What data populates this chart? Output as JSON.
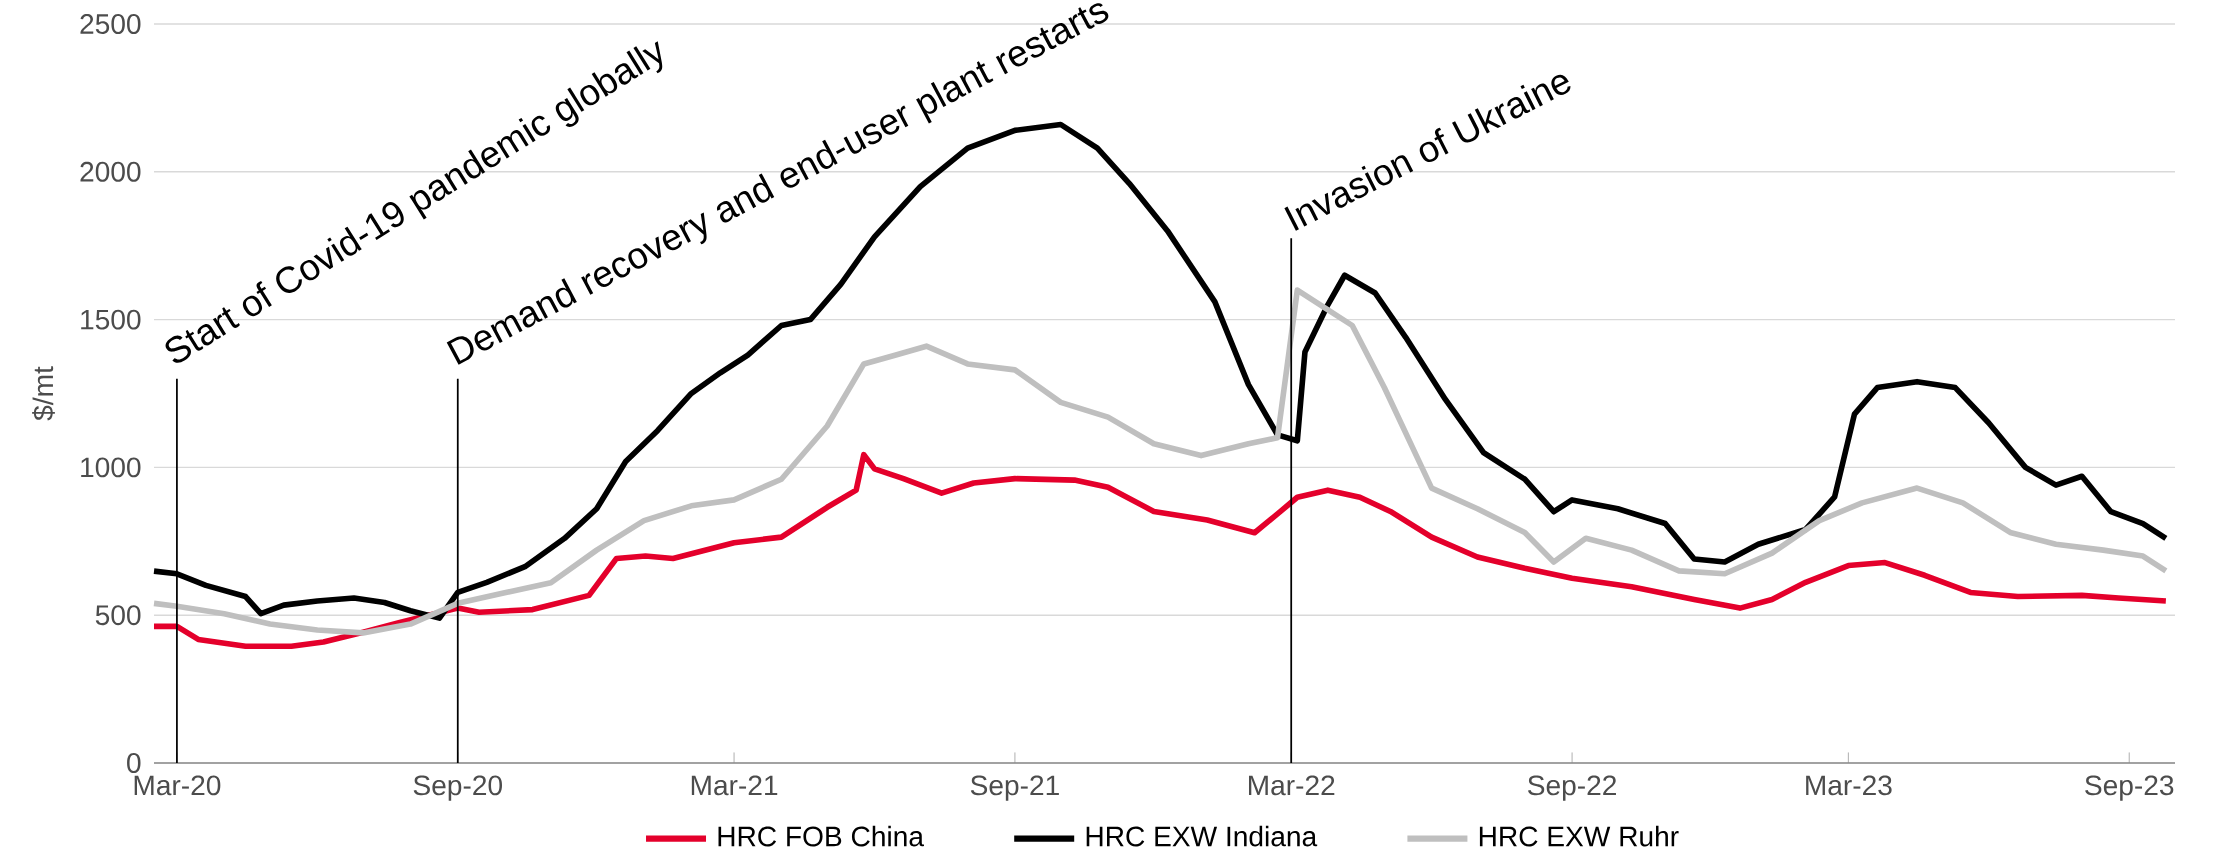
{
  "chart_data": {
    "type": "line",
    "ylabel": "$/mt",
    "ylim": [
      0,
      2500
    ],
    "yticks": [
      0,
      500,
      1000,
      1500,
      2000,
      2500
    ],
    "xlim": [
      "2020-02-15",
      "2023-10-01"
    ],
    "xticks": [
      {
        "value": "2020-03-01",
        "label": "Mar-20"
      },
      {
        "value": "2020-09-01",
        "label": "Sep-20"
      },
      {
        "value": "2021-03-01",
        "label": "Mar-21"
      },
      {
        "value": "2021-09-01",
        "label": "Sep-21"
      },
      {
        "value": "2022-03-01",
        "label": "Mar-22"
      },
      {
        "value": "2022-09-01",
        "label": "Sep-22"
      },
      {
        "value": "2023-03-01",
        "label": "Mar-23"
      },
      {
        "value": "2023-09-01",
        "label": "Sep-23"
      }
    ],
    "grid": "y",
    "legend": "bottom",
    "marker": "none",
    "line_style": "solid",
    "ref_lines": [
      {
        "axis": "x",
        "value": "2020-03-01",
        "label": "Start of Covid-19 pandemic globally"
      },
      {
        "axis": "x",
        "value": "2020-09-01",
        "label": "Demand recovery and end-user plant restarts"
      },
      {
        "axis": "x",
        "value": "2022-03-01",
        "label": "Invasion of Ukraine"
      }
    ],
    "series": [
      {
        "name": "HRC FOB China",
        "color": "#e4002b",
        "x": [
          "2020-02-15",
          "2020-03-01",
          "2020-03-15",
          "2020-04-15",
          "2020-05-15",
          "2020-06-05",
          "2020-07-01",
          "2020-07-25",
          "2020-09-01",
          "2020-09-15",
          "2020-10-20",
          "2020-11-26",
          "2020-12-14",
          "2021-01-02",
          "2021-01-20",
          "2021-03-01",
          "2021-04-01",
          "2021-05-01",
          "2021-05-20",
          "2021-05-25",
          "2021-06-01",
          "2021-06-20",
          "2021-07-15",
          "2021-08-05",
          "2021-09-01",
          "2021-10-10",
          "2021-11-01",
          "2021-12-01",
          "2022-01-05",
          "2022-02-05",
          "2022-02-22",
          "2022-03-05",
          "2022-03-25",
          "2022-04-15",
          "2022-05-05",
          "2022-06-01",
          "2022-07-01",
          "2022-08-01",
          "2022-09-01",
          "2022-10-10",
          "2022-11-20",
          "2022-12-20",
          "2023-01-10",
          "2023-02-01",
          "2023-03-01",
          "2023-03-25",
          "2023-04-20",
          "2023-05-20",
          "2023-06-20",
          "2023-08-01",
          "2023-08-25",
          "2023-09-25"
        ],
        "values": [
          462,
          462,
          418,
          395,
          395,
          409,
          442,
          475,
          524,
          510,
          519,
          567,
          692,
          700,
          692,
          745,
          764,
          865,
          923,
          1043,
          995,
          962,
          913,
          947,
          962,
          957,
          933,
          851,
          822,
          779,
          851,
          899,
          923,
          899,
          851,
          764,
          697,
          659,
          625,
          596,
          553,
          524,
          553,
          611,
          668,
          678,
          635,
          577,
          563,
          567,
          558,
          548
        ]
      },
      {
        "name": "HRC EXW Indiana",
        "color": "#000000",
        "x": [
          "2020-02-15",
          "2020-03-01",
          "2020-03-20",
          "2020-04-15",
          "2020-04-25",
          "2020-05-10",
          "2020-06-01",
          "2020-06-25",
          "2020-07-15",
          "2020-08-01",
          "2020-08-20",
          "2020-09-01",
          "2020-09-20",
          "2020-10-15",
          "2020-11-10",
          "2020-12-01",
          "2020-12-20",
          "2021-01-10",
          "2021-02-01",
          "2021-02-20",
          "2021-03-10",
          "2021-04-01",
          "2021-04-20",
          "2021-05-10",
          "2021-06-01",
          "2021-07-01",
          "2021-08-01",
          "2021-09-01",
          "2021-10-01",
          "2021-10-25",
          "2021-11-15",
          "2021-12-10",
          "2022-01-10",
          "2022-02-01",
          "2022-02-20",
          "2022-03-05",
          "2022-03-10",
          "2022-03-25",
          "2022-04-05",
          "2022-04-25",
          "2022-05-15",
          "2022-06-10",
          "2022-07-05",
          "2022-08-01",
          "2022-08-20",
          "2022-09-01",
          "2022-10-01",
          "2022-11-01",
          "2022-11-20",
          "2022-12-10",
          "2023-01-01",
          "2023-02-01",
          "2023-02-20",
          "2023-03-05",
          "2023-03-20",
          "2023-04-15",
          "2023-05-10",
          "2023-06-01",
          "2023-06-25",
          "2023-07-15",
          "2023-08-01",
          "2023-08-20",
          "2023-09-10",
          "2023-09-25"
        ],
        "values": [
          649,
          640,
          601,
          563,
          505,
          534,
          548,
          558,
          543,
          515,
          490,
          577,
          611,
          664,
          760,
          860,
          1020,
          1125,
          1250,
          1320,
          1380,
          1480,
          1500,
          1620,
          1780,
          1950,
          2080,
          2140,
          2160,
          2080,
          1960,
          1800,
          1560,
          1280,
          1110,
          1090,
          1390,
          1550,
          1650,
          1590,
          1440,
          1230,
          1050,
          960,
          850,
          890,
          860,
          810,
          690,
          680,
          740,
          790,
          900,
          1180,
          1270,
          1290,
          1270,
          1150,
          1000,
          940,
          970,
          850,
          810,
          760
        ]
      },
      {
        "name": "HRC EXW Ruhr",
        "color": "#bfbfbf",
        "x": [
          "2020-02-15",
          "2020-03-01",
          "2020-04-01",
          "2020-05-01",
          "2020-06-01",
          "2020-07-01",
          "2020-08-01",
          "2020-09-01",
          "2020-10-01",
          "2020-11-01",
          "2020-12-01",
          "2021-01-01",
          "2021-02-01",
          "2021-03-01",
          "2021-04-01",
          "2021-05-01",
          "2021-05-25",
          "2021-06-15",
          "2021-07-05",
          "2021-08-01",
          "2021-09-01",
          "2021-10-01",
          "2021-11-01",
          "2021-12-01",
          "2022-01-01",
          "2022-02-01",
          "2022-02-20",
          "2022-03-05",
          "2022-03-20",
          "2022-04-10",
          "2022-05-01",
          "2022-06-01",
          "2022-07-01",
          "2022-08-01",
          "2022-08-20",
          "2022-09-10",
          "2022-10-10",
          "2022-11-10",
          "2022-12-10",
          "2023-01-10",
          "2023-02-10",
          "2023-03-10",
          "2023-04-15",
          "2023-05-15",
          "2023-06-15",
          "2023-07-15",
          "2023-08-15",
          "2023-09-10",
          "2023-09-25"
        ],
        "values": [
          540,
          530,
          505,
          470,
          450,
          440,
          470,
          540,
          575,
          610,
          720,
          820,
          870,
          890,
          960,
          1140,
          1350,
          1380,
          1410,
          1350,
          1330,
          1220,
          1170,
          1080,
          1040,
          1080,
          1100,
          1600,
          1550,
          1480,
          1270,
          930,
          860,
          780,
          680,
          760,
          720,
          650,
          640,
          710,
          820,
          880,
          930,
          880,
          780,
          740,
          720,
          700,
          650
        ]
      }
    ]
  }
}
